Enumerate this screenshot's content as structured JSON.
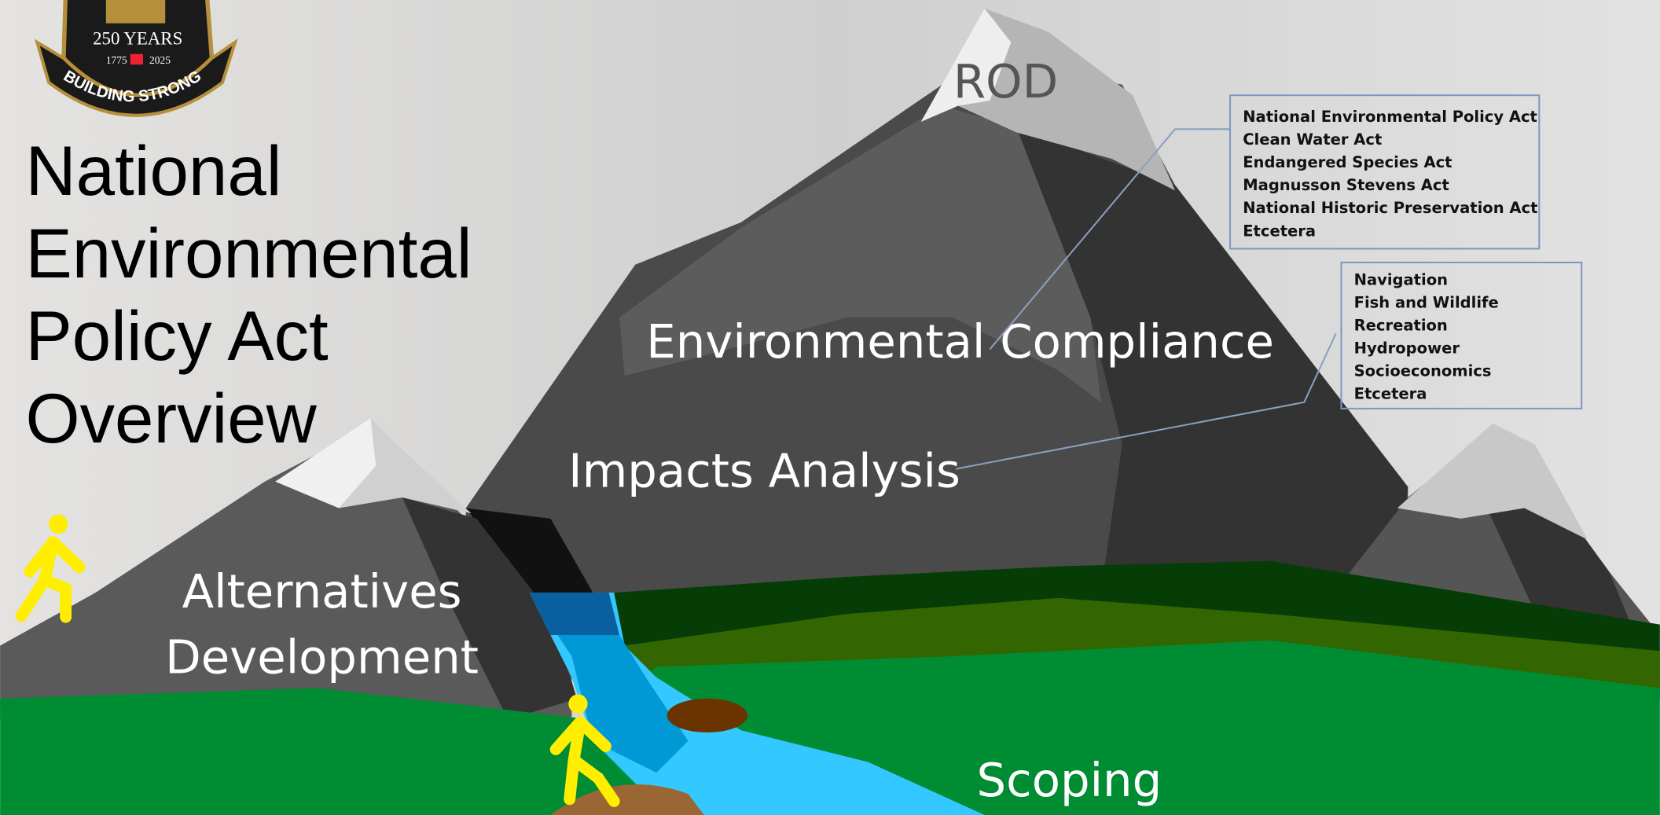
{
  "logo": {
    "years": "250 YEARS",
    "start": "1775",
    "end": "2025",
    "motto": "BUILDING STRONG"
  },
  "title": {
    "lines": [
      "National",
      "Environmental",
      "Policy Act",
      "Overview"
    ]
  },
  "stages": {
    "rod": "ROD",
    "compliance": "Environmental Compliance",
    "impacts": "Impacts Analysis",
    "alternatives": [
      "Alternatives",
      "Development"
    ],
    "scoping": "Scoping"
  },
  "callouts": [
    {
      "items": [
        "National Environmental Policy Act",
        "Clean Water Act",
        "Endangered Species Act",
        "Magnusson Stevens Act",
        "National Historic Preservation Act",
        "Etcetera"
      ]
    },
    {
      "items": [
        "Navigation",
        "Fish and Wildlife",
        "Recreation",
        "Hydropower",
        "Socioeconomics",
        "Etcetera"
      ]
    }
  ]
}
